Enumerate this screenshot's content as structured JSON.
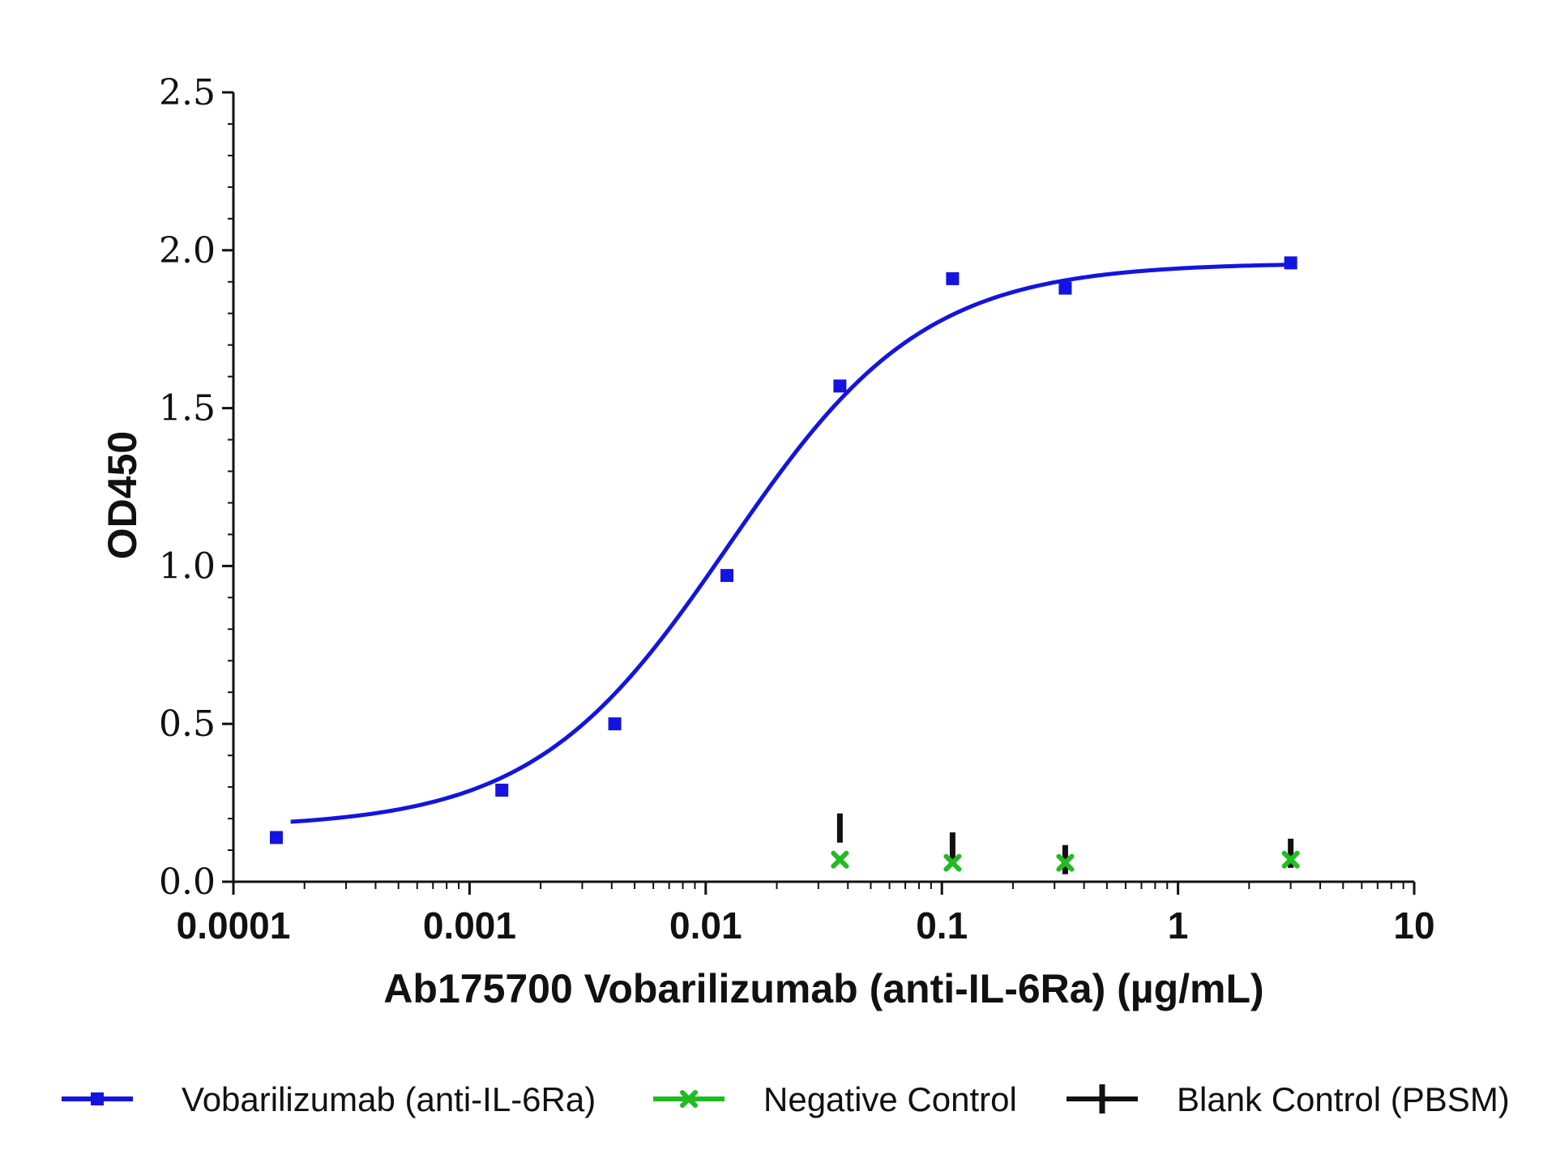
{
  "chart_data": {
    "type": "scatter",
    "xlabel": "Ab175700 Vobarilizumab (anti-IL-6Ra) (µg/mL)",
    "ylabel": "OD450",
    "xscale": "log",
    "xlim": [
      0.0001,
      10
    ],
    "ylim": [
      0,
      2.5
    ],
    "x_ticks": [
      0.0001,
      0.001,
      0.01,
      0.1,
      1,
      10
    ],
    "x_tick_labels": [
      "0.0001",
      "0.001",
      "0.01",
      "0.1",
      "1",
      "10"
    ],
    "y_ticks": [
      0,
      0.5,
      1,
      1.5,
      2,
      2.5
    ],
    "y_tick_labels": [
      "0.0",
      "0.5",
      "1.0",
      "1.5",
      "2.0",
      "2.5"
    ],
    "grid": false,
    "legend_position": "bottom",
    "series": [
      {
        "name": "Vobarilizumab (anti-IL-6Ra)",
        "color": "#1414e0",
        "marker": "square",
        "fit": "sigmoidal",
        "fit_params": {
          "bottom": 0.17,
          "top": 1.96,
          "ec50": 0.0125,
          "hill": 1.05
        },
        "x": [
          0.000152,
          0.00137,
          0.00412,
          0.0123,
          0.037,
          0.111,
          0.333,
          3.0
        ],
        "y": [
          0.14,
          0.29,
          0.5,
          0.97,
          1.57,
          1.91,
          1.88,
          1.96
        ]
      },
      {
        "name": "Negative Control",
        "color": "#22bb22",
        "marker": "x",
        "x": [
          0.037,
          0.111,
          0.333,
          3.0
        ],
        "y": [
          0.07,
          0.06,
          0.06,
          0.07
        ]
      },
      {
        "name": "Blank Control (PBSM)",
        "color": "#111111",
        "marker": "bar",
        "x": [
          0.037,
          0.111,
          0.333,
          3.0
        ],
        "y": [
          0.17,
          0.11,
          0.07,
          0.09
        ]
      }
    ]
  }
}
